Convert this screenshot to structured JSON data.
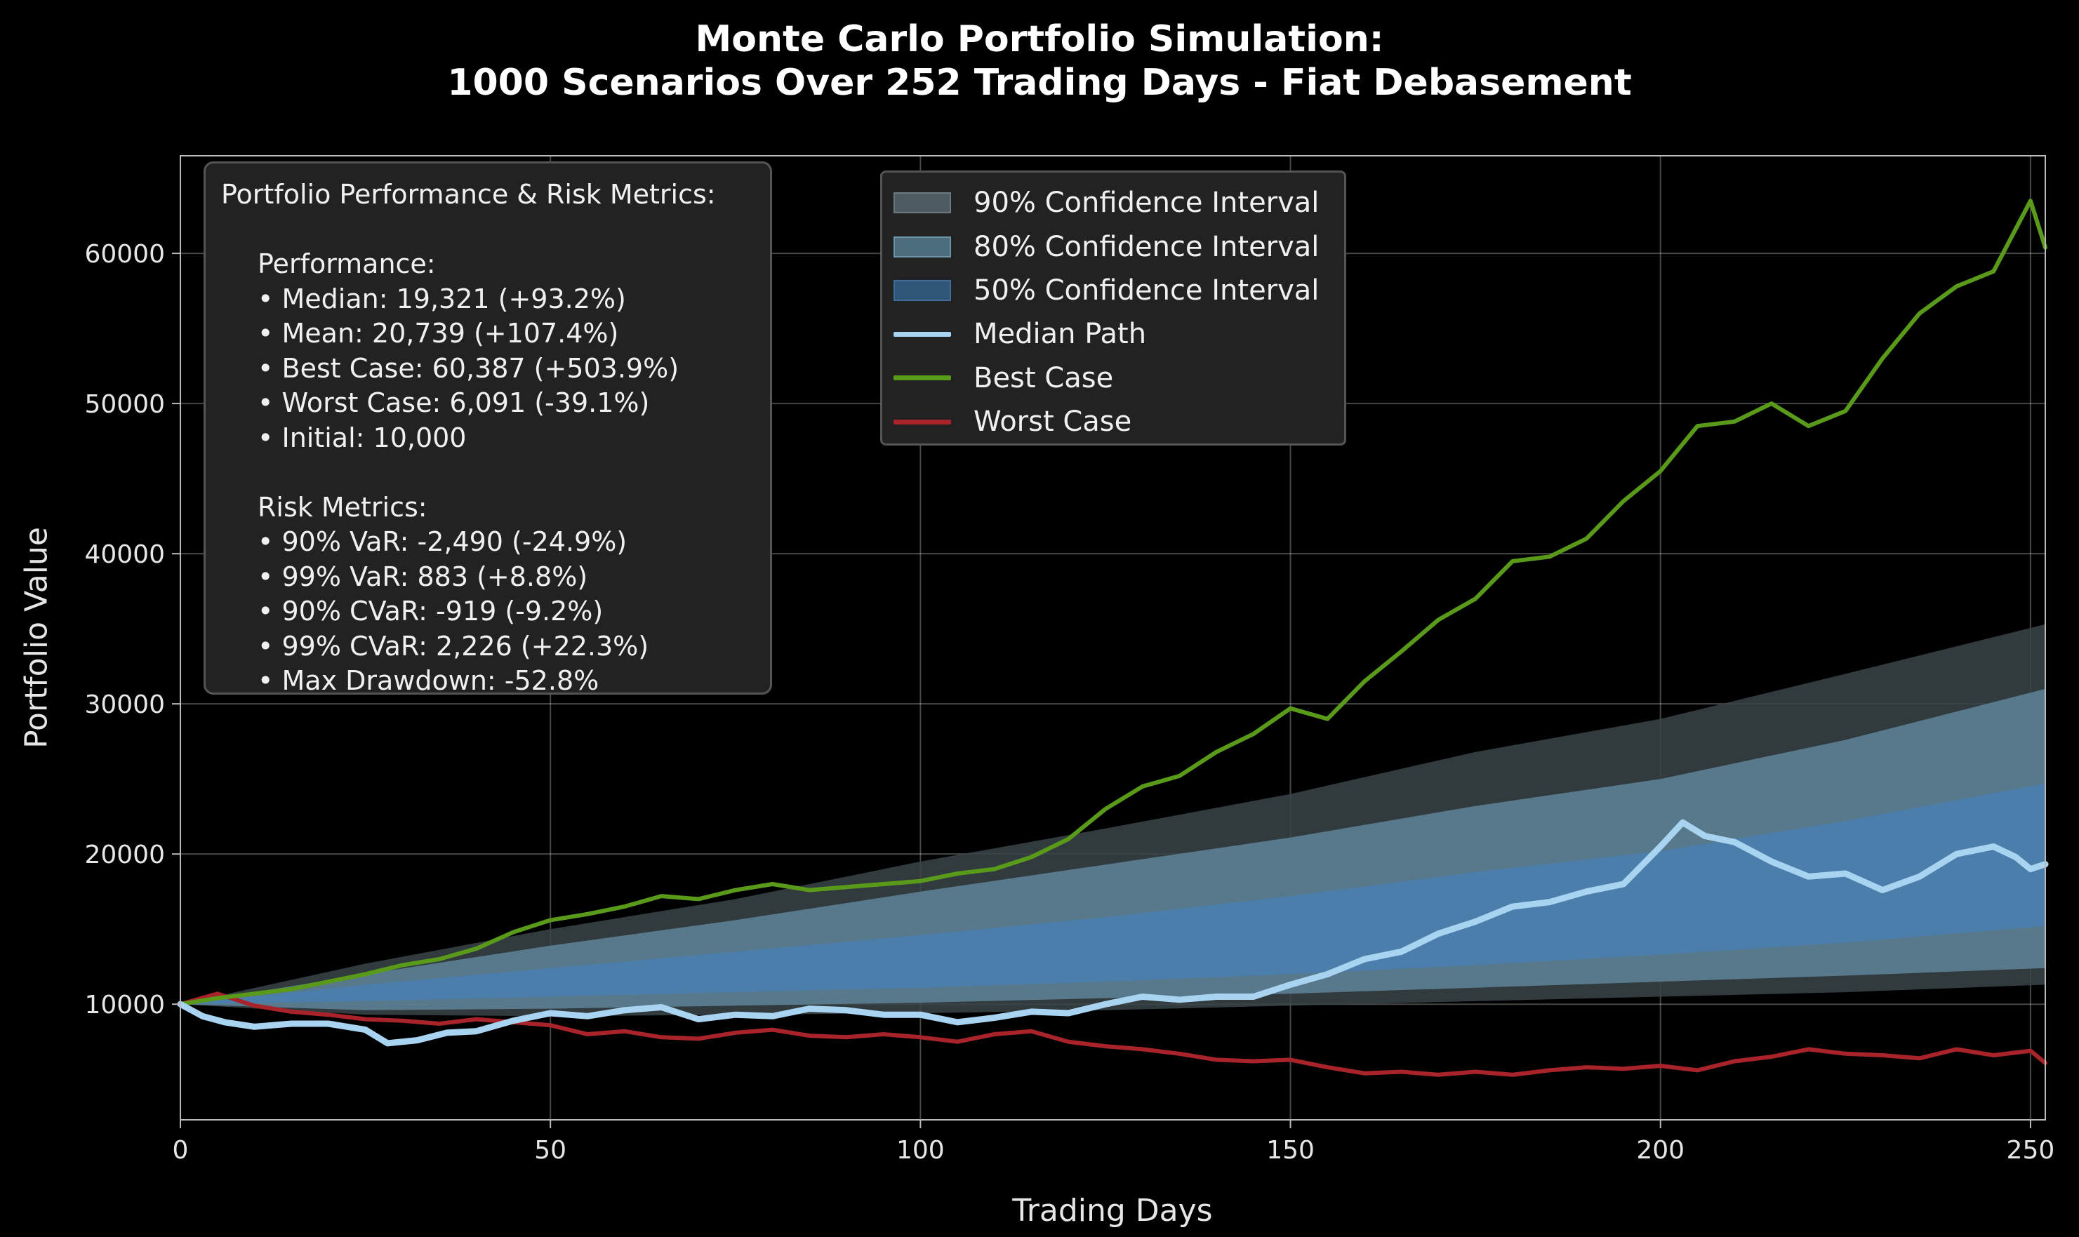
{
  "chart_data": {
    "type": "line",
    "title": [
      "Monte Carlo Portfolio Simulation:",
      "1000 Scenarios Over 252 Trading Days - Fiat Debasement"
    ],
    "xlabel": "Trading Days",
    "ylabel": "Portfolio Value",
    "xlim": [
      0,
      252
    ],
    "ylim": [
      2300,
      66500
    ],
    "grid": true,
    "x_ticks": [
      0,
      50,
      100,
      150,
      200,
      250
    ],
    "y_ticks": [
      10000,
      20000,
      30000,
      40000,
      50000,
      60000
    ],
    "legend_placement": "top-center",
    "legend": [
      {
        "label": "90% Confidence Interval",
        "kind": "band",
        "color": "#7f8f99"
      },
      {
        "label": "80% Confidence Interval",
        "kind": "band",
        "color": "#8cb3cf"
      },
      {
        "label": "50% Confidence Interval",
        "kind": "band",
        "color": "#4a7fb0"
      },
      {
        "label": "Median Path",
        "kind": "line",
        "color": "#a8d4f2"
      },
      {
        "label": "Best Case",
        "kind": "line",
        "color": "#5a9a1a"
      },
      {
        "label": "Worst Case",
        "kind": "line",
        "color": "#a8232a"
      }
    ],
    "bands": [
      {
        "name": "90% Confidence Interval",
        "color": "#3a4549",
        "x": [
          0,
          25,
          50,
          75,
          100,
          125,
          150,
          175,
          200,
          225,
          252
        ],
        "lower": [
          10000,
          9300,
          9200,
          9300,
          9400,
          9600,
          9900,
          10200,
          10500,
          10800,
          11300
        ],
        "upper": [
          10000,
          12700,
          15000,
          17000,
          19500,
          21700,
          24000,
          26800,
          29000,
          32000,
          35300
        ]
      },
      {
        "name": "80% Confidence Interval",
        "color": "#5f8499",
        "x": [
          0,
          25,
          50,
          75,
          100,
          125,
          150,
          175,
          200,
          225,
          252
        ],
        "lower": [
          10000,
          9600,
          9700,
          9900,
          10100,
          10400,
          10700,
          11100,
          11500,
          11900,
          12400
        ],
        "upper": [
          10000,
          12000,
          13900,
          15600,
          17500,
          19300,
          21100,
          23200,
          25000,
          27600,
          31000
        ]
      },
      {
        "name": "50% Confidence Interval",
        "color": "#4a7fb0",
        "x": [
          0,
          25,
          50,
          75,
          100,
          125,
          150,
          175,
          200,
          225,
          252
        ],
        "lower": [
          10000,
          10200,
          10500,
          10800,
          11100,
          11500,
          12000,
          12600,
          13300,
          14100,
          15200
        ],
        "upper": [
          10000,
          11300,
          12400,
          13500,
          14600,
          15800,
          17200,
          18800,
          20200,
          22200,
          24700
        ]
      }
    ],
    "series": [
      {
        "name": "Worst Case",
        "color": "#a8232a",
        "width": 6,
        "x": [
          0,
          5,
          10,
          15,
          20,
          25,
          30,
          35,
          40,
          45,
          50,
          55,
          60,
          65,
          70,
          75,
          80,
          85,
          90,
          95,
          100,
          105,
          110,
          115,
          120,
          125,
          130,
          135,
          140,
          145,
          150,
          155,
          160,
          165,
          170,
          175,
          180,
          185,
          190,
          195,
          200,
          205,
          210,
          215,
          220,
          225,
          230,
          235,
          240,
          245,
          250,
          252
        ],
        "y": [
          10000,
          10700,
          9900,
          9500,
          9300,
          9000,
          8900,
          8700,
          9000,
          8800,
          8600,
          8000,
          8200,
          7800,
          7700,
          8100,
          8300,
          7900,
          7800,
          8000,
          7800,
          7500,
          8000,
          8200,
          7500,
          7200,
          7000,
          6700,
          6300,
          6200,
          6300,
          5800,
          5400,
          5500,
          5300,
          5500,
          5300,
          5600,
          5800,
          5700,
          5900,
          5600,
          6200,
          6500,
          7000,
          6700,
          6600,
          6400,
          7000,
          6600,
          6900,
          6091
        ]
      },
      {
        "name": "Best Case",
        "color": "#5a9a1a",
        "width": 6,
        "x": [
          0,
          5,
          10,
          15,
          20,
          25,
          30,
          35,
          40,
          45,
          50,
          55,
          60,
          65,
          70,
          75,
          80,
          85,
          90,
          95,
          100,
          105,
          110,
          115,
          120,
          125,
          130,
          135,
          140,
          145,
          150,
          155,
          160,
          165,
          170,
          175,
          180,
          185,
          190,
          195,
          200,
          205,
          210,
          215,
          220,
          225,
          230,
          235,
          240,
          245,
          250,
          252
        ],
        "y": [
          10000,
          10400,
          10700,
          11000,
          11500,
          12000,
          12600,
          13000,
          13700,
          14800,
          15600,
          16000,
          16500,
          17200,
          17000,
          17600,
          18000,
          17600,
          17800,
          18000,
          18200,
          18700,
          19000,
          19800,
          21000,
          23000,
          24500,
          25200,
          26800,
          28000,
          29700,
          29000,
          31500,
          33500,
          35600,
          37000,
          39500,
          39800,
          41000,
          43500,
          45500,
          48500,
          48800,
          50000,
          48500,
          49500,
          53000,
          56000,
          57800,
          58800,
          63500,
          60387
        ]
      },
      {
        "name": "Median Path",
        "color": "#a8d4f2",
        "width": 9,
        "x": [
          0,
          3,
          6,
          10,
          15,
          20,
          25,
          28,
          32,
          36,
          40,
          45,
          50,
          55,
          60,
          65,
          70,
          75,
          80,
          85,
          90,
          95,
          100,
          105,
          110,
          115,
          120,
          125,
          130,
          135,
          140,
          145,
          150,
          155,
          160,
          165,
          170,
          175,
          180,
          185,
          190,
          195,
          200,
          203,
          206,
          210,
          215,
          220,
          225,
          230,
          235,
          240,
          245,
          248,
          250,
          252
        ],
        "y": [
          10000,
          9200,
          8800,
          8500,
          8700,
          8700,
          8300,
          7400,
          7600,
          8100,
          8200,
          8900,
          9400,
          9200,
          9600,
          9800,
          9000,
          9300,
          9200,
          9700,
          9600,
          9300,
          9300,
          8800,
          9100,
          9500,
          9400,
          10000,
          10500,
          10300,
          10500,
          10500,
          11300,
          12000,
          13000,
          13500,
          14700,
          15500,
          16500,
          16800,
          17500,
          18000,
          20500,
          22100,
          21200,
          20800,
          19500,
          18500,
          18700,
          17600,
          18500,
          20000,
          20500,
          19800,
          19000,
          19321
        ]
      }
    ]
  },
  "metrics_panel": {
    "heading": "Portfolio Performance & Risk Metrics:",
    "performance_title": "Performance:",
    "performance": [
      "• Median: 19,321 (+93.2%)",
      "• Mean: 20,739 (+107.4%)",
      "• Best Case: 60,387 (+503.9%)",
      "• Worst Case: 6,091 (-39.1%)",
      "• Initial: 10,000"
    ],
    "risk_title": "Risk Metrics:",
    "risk": [
      "• 90% VaR: -2,490 (-24.9%)",
      "• 99% VaR: 883 (+8.8%)",
      "• 90% CVaR: -919 (-9.2%)",
      "• 99% CVaR: 2,226 (+22.3%)",
      "• Max Drawdown: -52.8%"
    ]
  }
}
